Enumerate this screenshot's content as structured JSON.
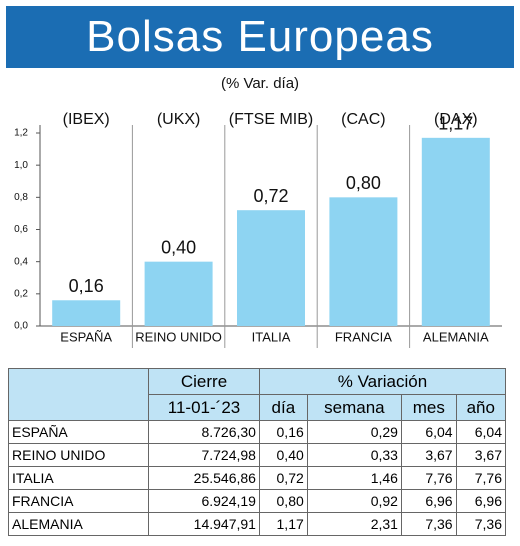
{
  "chart_data": {
    "type": "bar",
    "title": "Bolsas Europeas",
    "subtitle": "(% Var. día)",
    "categories": [
      "ESPAÑA",
      "REINO UNIDO",
      "ITALIA",
      "FRANCIA",
      "ALEMANIA"
    ],
    "category_annotations": [
      "(IBEX)",
      "(UKX)",
      "(FTSE MIB)",
      "(CAC)",
      "(DAX)"
    ],
    "values": [
      0.16,
      0.4,
      0.72,
      0.8,
      1.17
    ],
    "value_labels": [
      "0,16",
      "0,40",
      "0,72",
      "0,80",
      "1,17"
    ],
    "color": "#8ed4f2",
    "ylim": [
      0,
      1.2
    ],
    "yticks": [
      {
        "value": 0,
        "label": "0,0"
      },
      {
        "value": 0.2,
        "label": "0,2"
      },
      {
        "value": 0.4,
        "label": "0,4"
      },
      {
        "value": 0.6,
        "label": "0,6"
      },
      {
        "value": 0.8,
        "label": "0,8"
      },
      {
        "value": 1.0,
        "label": "1,0"
      },
      {
        "value": 1.2,
        "label": "1,2"
      }
    ],
    "grid": false
  },
  "table": {
    "header": [
      "Cierre",
      "% Variación"
    ],
    "subheader": [
      "11-01-´23",
      "día",
      "semana",
      "mes",
      "año"
    ],
    "rows": [
      [
        "ESPAÑA",
        "8.726,30",
        "0,16",
        "0,29",
        "6,04",
        "6,04"
      ],
      [
        "REINO UNIDO",
        "7.724,98",
        "0,40",
        "0,33",
        "3,67",
        "3,67"
      ],
      [
        "ITALIA",
        "25.546,86",
        "0,72",
        "1,46",
        "7,76",
        "7,76"
      ],
      [
        "FRANCIA",
        "6.924,19",
        "0,80",
        "0,92",
        "6,96",
        "6,96"
      ],
      [
        "ALEMANIA",
        "14.947,91",
        "1,17",
        "2,31",
        "7,36",
        "7,36"
      ]
    ]
  }
}
